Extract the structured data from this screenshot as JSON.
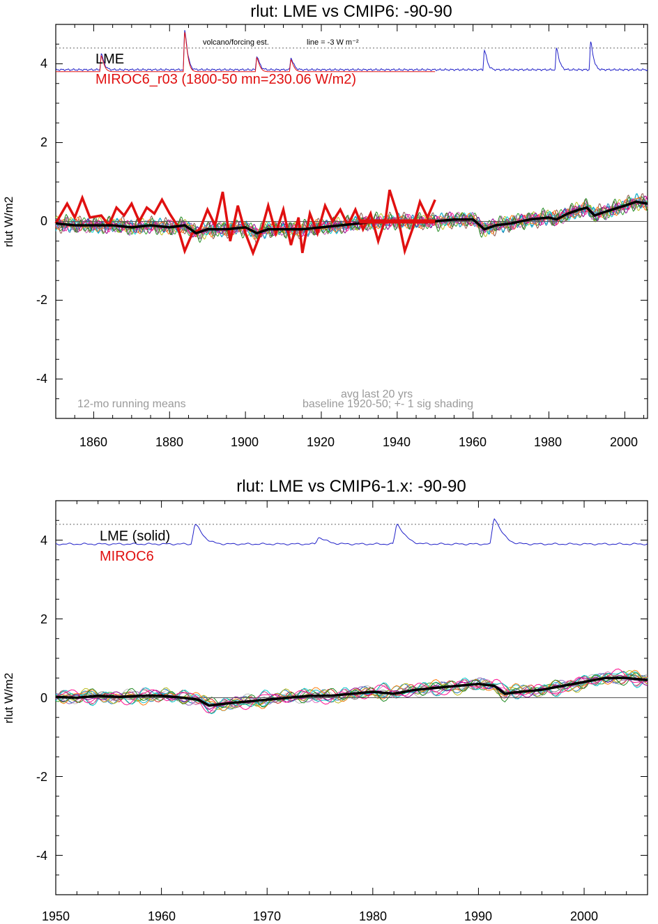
{
  "figure": {
    "colors": {
      "lme": "#000000",
      "miroc": "#e01010",
      "forcing": "#2020c8",
      "annotation": "#9a9a9a",
      "zero_line": "#555555",
      "ensemble": [
        "#c0c0c0",
        "#2aa02a",
        "#d62728",
        "#1f77b4",
        "#9467bd",
        "#8c564b",
        "#e377c2",
        "#17becf",
        "#bcbd22",
        "#ff7f0e",
        "#7f7f7f",
        "#00cccc",
        "#8b008b",
        "#228b22",
        "#ff1493"
      ]
    }
  },
  "chart_data": [
    {
      "type": "line",
      "title": "rlut: LME vs CMIP6: -90-90",
      "ylabel": "rlut W/m2",
      "xlabel": "",
      "xlim": [
        1850,
        2006
      ],
      "ylim": [
        -5,
        5
      ],
      "x_ticks": [
        "1860",
        "1880",
        "1900",
        "1920",
        "1940",
        "1960",
        "1980",
        "2000"
      ],
      "y_ticks": [
        "4",
        "2",
        "0",
        "-2",
        "-4"
      ],
      "legend": [
        "LME",
        "MIROC6_r03 (1800-50 mn=230.06 W/m2)"
      ],
      "forcing_note": "volcano/forcing est.",
      "forcing_line_note": "line = -3 W m⁻²",
      "notes": [
        "12-mo running means",
        "avg last 20 yrs",
        "baseline 1920-50; +- 1 sig shading"
      ],
      "forcing_reference_y": 4.4,
      "baseline_segment": [
        1930,
        1950
      ],
      "forcing_baseline": 3.85,
      "forcing_spikes": [
        {
          "year": 1862,
          "value": 4.25
        },
        {
          "year": 1884,
          "value": 4.85
        },
        {
          "year": 1903,
          "value": 4.2
        },
        {
          "year": 1912,
          "value": 4.15
        },
        {
          "year": 1963,
          "value": 4.35
        },
        {
          "year": 1982,
          "value": 4.4
        },
        {
          "year": 1991,
          "value": 4.55
        }
      ],
      "lme_mean": [
        [
          1850,
          -0.05
        ],
        [
          1855,
          -0.1
        ],
        [
          1860,
          -0.1
        ],
        [
          1865,
          -0.1
        ],
        [
          1870,
          -0.15
        ],
        [
          1875,
          -0.1
        ],
        [
          1880,
          -0.15
        ],
        [
          1884,
          -0.1
        ],
        [
          1887,
          -0.3
        ],
        [
          1890,
          -0.2
        ],
        [
          1895,
          -0.2
        ],
        [
          1900,
          -0.15
        ],
        [
          1903,
          -0.3
        ],
        [
          1906,
          -0.2
        ],
        [
          1910,
          -0.2
        ],
        [
          1915,
          -0.2
        ],
        [
          1920,
          -0.15
        ],
        [
          1925,
          -0.1
        ],
        [
          1930,
          -0.05
        ],
        [
          1935,
          0.0
        ],
        [
          1940,
          0.0
        ],
        [
          1945,
          0.0
        ],
        [
          1950,
          0.0
        ],
        [
          1955,
          0.05
        ],
        [
          1960,
          0.05
        ],
        [
          1963,
          -0.2
        ],
        [
          1966,
          -0.1
        ],
        [
          1970,
          -0.05
        ],
        [
          1975,
          0.05
        ],
        [
          1980,
          0.1
        ],
        [
          1982,
          0.05
        ],
        [
          1985,
          0.2
        ],
        [
          1988,
          0.3
        ],
        [
          1990,
          0.35
        ],
        [
          1992,
          0.15
        ],
        [
          1995,
          0.25
        ],
        [
          2000,
          0.4
        ],
        [
          2003,
          0.5
        ],
        [
          2006,
          0.45
        ]
      ],
      "miroc": [
        [
          1850,
          -0.05
        ],
        [
          1853,
          0.45
        ],
        [
          1855,
          0.1
        ],
        [
          1857,
          0.6
        ],
        [
          1859,
          0.1
        ],
        [
          1862,
          0.15
        ],
        [
          1864,
          -0.1
        ],
        [
          1866,
          0.35
        ],
        [
          1868,
          0.15
        ],
        [
          1870,
          0.45
        ],
        [
          1872,
          0.0
        ],
        [
          1874,
          0.35
        ],
        [
          1876,
          0.2
        ],
        [
          1878,
          0.55
        ],
        [
          1880,
          0.2
        ],
        [
          1882,
          -0.1
        ],
        [
          1884,
          -0.75
        ],
        [
          1886,
          -0.3
        ],
        [
          1888,
          -0.2
        ],
        [
          1890,
          0.3
        ],
        [
          1892,
          -0.1
        ],
        [
          1894,
          0.75
        ],
        [
          1896,
          -0.5
        ],
        [
          1898,
          0.4
        ],
        [
          1900,
          -0.3
        ],
        [
          1902,
          -0.8
        ],
        [
          1904,
          -0.3
        ],
        [
          1906,
          0.4
        ],
        [
          1908,
          -0.3
        ],
        [
          1910,
          0.3
        ],
        [
          1912,
          -0.6
        ],
        [
          1914,
          0.1
        ],
        [
          1915,
          -0.8
        ],
        [
          1917,
          0.2
        ],
        [
          1919,
          -0.3
        ],
        [
          1921,
          0.4
        ],
        [
          1923,
          0.0
        ],
        [
          1925,
          0.3
        ],
        [
          1927,
          -0.1
        ],
        [
          1929,
          0.3
        ],
        [
          1931,
          -0.2
        ],
        [
          1933,
          0.2
        ],
        [
          1935,
          -0.5
        ],
        [
          1937,
          0.1
        ],
        [
          1938,
          0.8
        ],
        [
          1940,
          0.2
        ],
        [
          1942,
          -0.75
        ],
        [
          1944,
          -0.2
        ],
        [
          1946,
          0.5
        ],
        [
          1948,
          0.1
        ],
        [
          1950,
          0.55
        ]
      ]
    },
    {
      "type": "line",
      "title": "rlut: LME vs CMIP6-1.x: -90-90",
      "ylabel": "rlut W/m2",
      "xlabel": "",
      "xlim": [
        1950,
        2006
      ],
      "ylim": [
        -5,
        5
      ],
      "x_ticks": [
        "1950",
        "1960",
        "1970",
        "1980",
        "1990",
        "2000"
      ],
      "y_ticks": [
        "4",
        "2",
        "0",
        "-2",
        "-4"
      ],
      "legend": [
        "LME (solid)",
        "MIROC6"
      ],
      "forcing_reference_y": 4.4,
      "forcing_baseline": 3.9,
      "forcing_spikes": [
        {
          "year": 1963.2,
          "value": 4.4
        },
        {
          "year": 1974.9,
          "value": 4.07
        },
        {
          "year": 1982.3,
          "value": 4.4
        },
        {
          "year": 1991.5,
          "value": 4.55
        }
      ],
      "lme_mean": [
        [
          1950,
          0.02
        ],
        [
          1952,
          0.0
        ],
        [
          1954,
          0.05
        ],
        [
          1956,
          0.02
        ],
        [
          1958,
          0.05
        ],
        [
          1960,
          0.05
        ],
        [
          1962,
          0.0
        ],
        [
          1963.5,
          -0.05
        ],
        [
          1964.5,
          -0.2
        ],
        [
          1966,
          -0.15
        ],
        [
          1968,
          -0.1
        ],
        [
          1970,
          -0.05
        ],
        [
          1972,
          0.0
        ],
        [
          1974,
          0.05
        ],
        [
          1976,
          0.05
        ],
        [
          1978,
          0.1
        ],
        [
          1980,
          0.15
        ],
        [
          1982,
          0.1
        ],
        [
          1984,
          0.2
        ],
        [
          1986,
          0.25
        ],
        [
          1988,
          0.3
        ],
        [
          1990,
          0.35
        ],
        [
          1991.5,
          0.3
        ],
        [
          1992.5,
          0.1
        ],
        [
          1994,
          0.15
        ],
        [
          1996,
          0.2
        ],
        [
          1998,
          0.3
        ],
        [
          2000,
          0.4
        ],
        [
          2002,
          0.5
        ],
        [
          2004,
          0.5
        ],
        [
          2006,
          0.45
        ]
      ]
    }
  ]
}
